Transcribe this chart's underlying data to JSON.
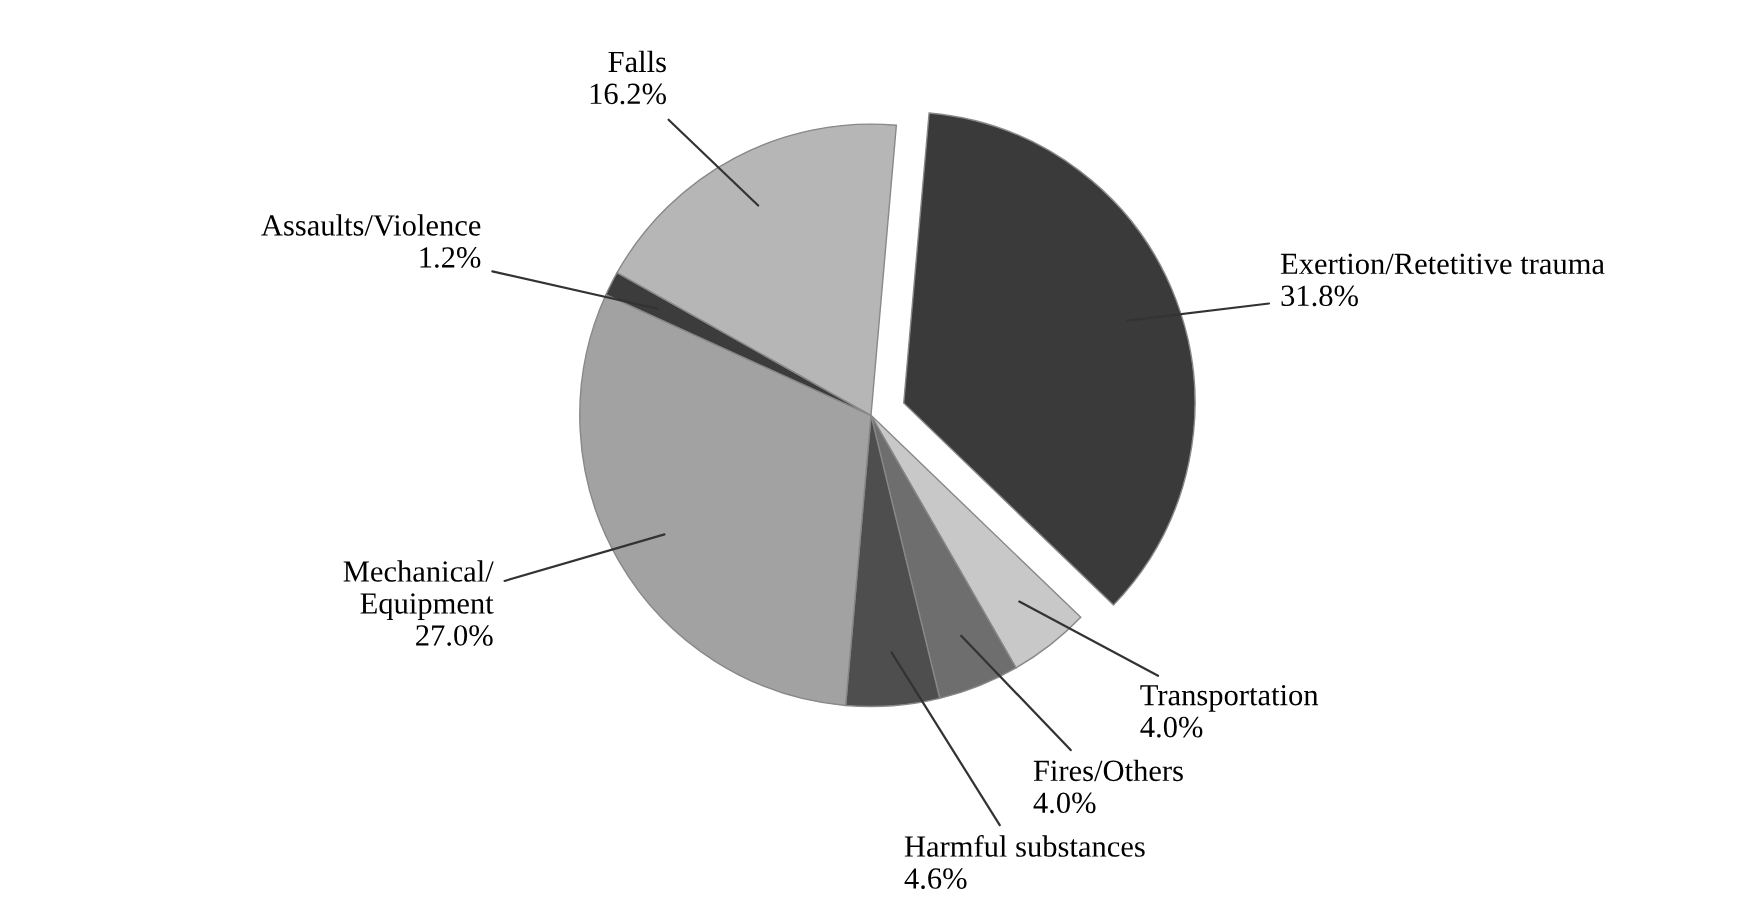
{
  "chart_data": {
    "type": "pie",
    "categories": [
      "Exertion/Retetitive trauma",
      "Transportation",
      "Fires/Others",
      "Harmful substances",
      "Mechanical/\nEquipment",
      "Assaults/Violence",
      "Falls"
    ],
    "values": [
      31.8,
      4.0,
      4.0,
      4.6,
      27.0,
      1.2,
      16.2
    ],
    "value_labels": [
      "31.8%",
      "4.0%",
      "4.0%",
      "4.6%",
      "27.0%",
      "1.2%",
      "16.2%"
    ],
    "colors": [
      "#3a3a3a",
      "#c8c8c8",
      "#6e6e6e",
      "#4e4e4e",
      "#a2a2a2",
      "#3c3c3c",
      "#b6b6b6"
    ],
    "legend": false
  }
}
